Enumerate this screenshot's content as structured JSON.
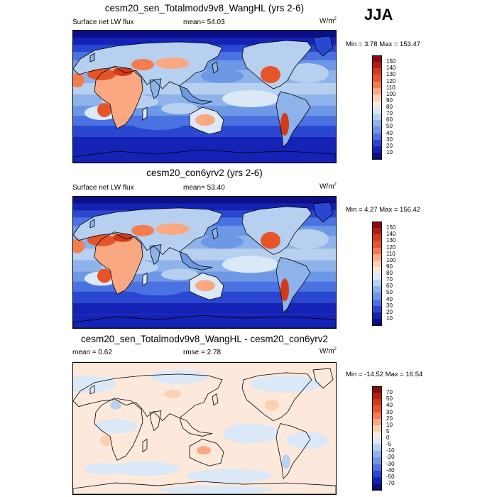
{
  "season": "JJA",
  "panels": [
    {
      "title": "cesm20_sen_Totalmodv9v8_WangHL (yrs 2-6)",
      "left_label": "Surface net LW flux",
      "center_label": "mean=  54.03",
      "units_base": "W/m",
      "units_exp": "2",
      "minmax": "Min =   3.78 Max = 153.47",
      "kind": "abs",
      "colorbar": {
        "labels": [
          "150",
          "140",
          "130",
          "120",
          "110",
          "100",
          "90",
          "80",
          "70",
          "60",
          "50",
          "40",
          "30",
          "20",
          "10"
        ],
        "colors": [
          "#8b0a0a",
          "#b31c0e",
          "#d33a17",
          "#e65427",
          "#f47d4f",
          "#f9a882",
          "#fbd1b4",
          "#fde9db",
          "#dbe8f7",
          "#b7d0f0",
          "#8eb3ea",
          "#6d98e6",
          "#4a72e2",
          "#2a47d2",
          "#1422b6",
          "#0b0f8a"
        ]
      }
    },
    {
      "title": "cesm20_con6yrv2 (yrs 2-6)",
      "left_label": "Surface net LW flux",
      "center_label": "mean=  53.40",
      "units_base": "W/m",
      "units_exp": "2",
      "minmax": "Min =   4.27 Max = 156.42",
      "kind": "abs",
      "colorbar": {
        "labels": [
          "150",
          "140",
          "130",
          "120",
          "110",
          "100",
          "90",
          "80",
          "70",
          "60",
          "50",
          "40",
          "30",
          "20",
          "10"
        ],
        "colors": [
          "#8b0a0a",
          "#b31c0e",
          "#d33a17",
          "#e65427",
          "#f47d4f",
          "#f9a882",
          "#fbd1b4",
          "#fde9db",
          "#dbe8f7",
          "#b7d0f0",
          "#8eb3ea",
          "#6d98e6",
          "#4a72e2",
          "#2a47d2",
          "#1422b6",
          "#0b0f8a"
        ]
      }
    },
    {
      "title": "cesm20_sen_Totalmodv9v8_WangHL - cesm20_con6yrv2",
      "left_label": "mean =   0.62",
      "center_label": "rmse =   2.78",
      "units_base": "W/m",
      "units_exp": "2",
      "minmax": "Min = -14.52 Max =  16.54",
      "kind": "diff",
      "colorbar": {
        "labels": [
          "70",
          "50",
          "40",
          "30",
          "20",
          "10",
          "5",
          "0",
          "-5",
          "-10",
          "-20",
          "-30",
          "-40",
          "-50",
          "-70"
        ],
        "colors": [
          "#8b0a0a",
          "#b31c0e",
          "#d33a17",
          "#e65427",
          "#f47d4f",
          "#f9a882",
          "#fbd1b4",
          "#fde9db",
          "#dbe8f7",
          "#b7d0f0",
          "#8eb3ea",
          "#6d98e6",
          "#4a72e2",
          "#2a47d2",
          "#1422b6",
          "#0b0f8a"
        ]
      }
    }
  ]
}
